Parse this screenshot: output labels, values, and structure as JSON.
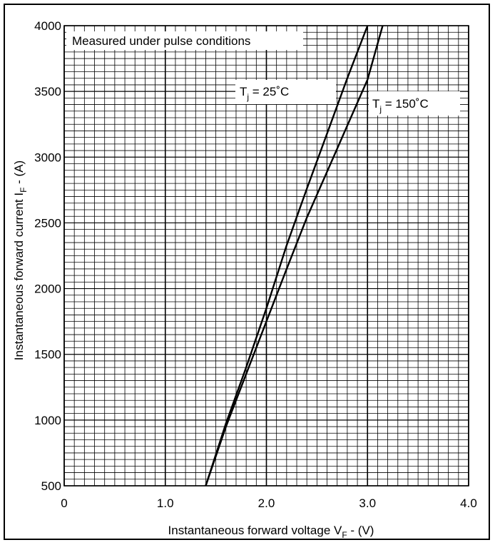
{
  "chart_data": {
    "type": "line",
    "xlabel": "Instantaneous forward voltage V_F - (V)",
    "ylabel": "Instantaneous forward current I_F - (A)",
    "xlim": [
      0,
      4.0
    ],
    "ylim": [
      500,
      4000
    ],
    "x_ticks": [
      "0",
      "1.0",
      "2.0",
      "3.0",
      "4.0"
    ],
    "y_ticks": [
      "500",
      "1000",
      "1500",
      "2000",
      "2500",
      "3000",
      "3500",
      "4000"
    ],
    "grid": true,
    "annotations": {
      "note": "Measured under pulse conditions",
      "label_25c": "T_j = 25˚C",
      "label_150c": "T_j = 150˚C"
    },
    "series": [
      {
        "name": "T_j = 25˚C",
        "points": [
          [
            1.4,
            500
          ],
          [
            1.6,
            975
          ],
          [
            1.8,
            1400
          ],
          [
            2.0,
            1850
          ],
          [
            2.2,
            2330
          ],
          [
            2.4,
            2760
          ],
          [
            2.6,
            3180
          ],
          [
            2.8,
            3600
          ],
          [
            3.0,
            4000
          ]
        ]
      },
      {
        "name": "T_j = 150˚C",
        "points": [
          [
            1.4,
            500
          ],
          [
            1.6,
            950
          ],
          [
            1.8,
            1350
          ],
          [
            2.0,
            1750
          ],
          [
            2.2,
            2150
          ],
          [
            2.4,
            2540
          ],
          [
            2.6,
            2890
          ],
          [
            2.8,
            3240
          ],
          [
            3.0,
            3590
          ],
          [
            3.15,
            4000
          ]
        ]
      }
    ]
  }
}
